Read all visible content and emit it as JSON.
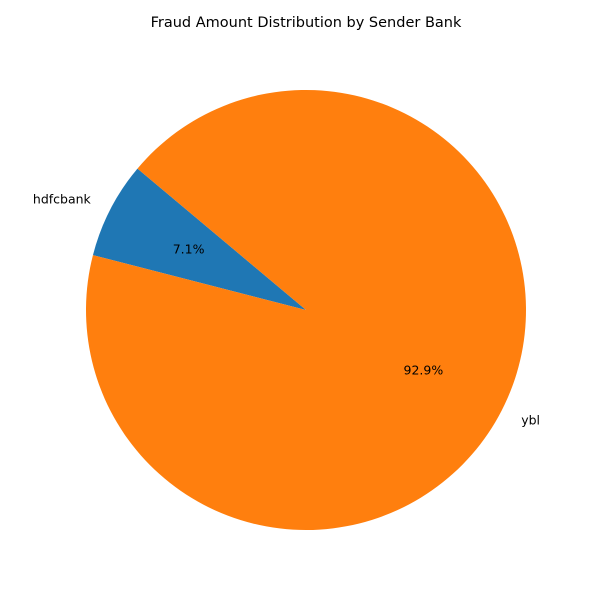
{
  "chart_data": {
    "type": "pie",
    "title": "Fraud Amount Distribution by Sender Bank",
    "start_angle_deg": 140,
    "direction": "counterclockwise",
    "slices": [
      {
        "label": "hdfcbank",
        "value": 7.1,
        "pct_label": "7.1%",
        "color": "#1f77b4"
      },
      {
        "label": "ybl",
        "value": 92.9,
        "pct_label": "92.9%",
        "color": "#ff7f0e"
      }
    ]
  }
}
